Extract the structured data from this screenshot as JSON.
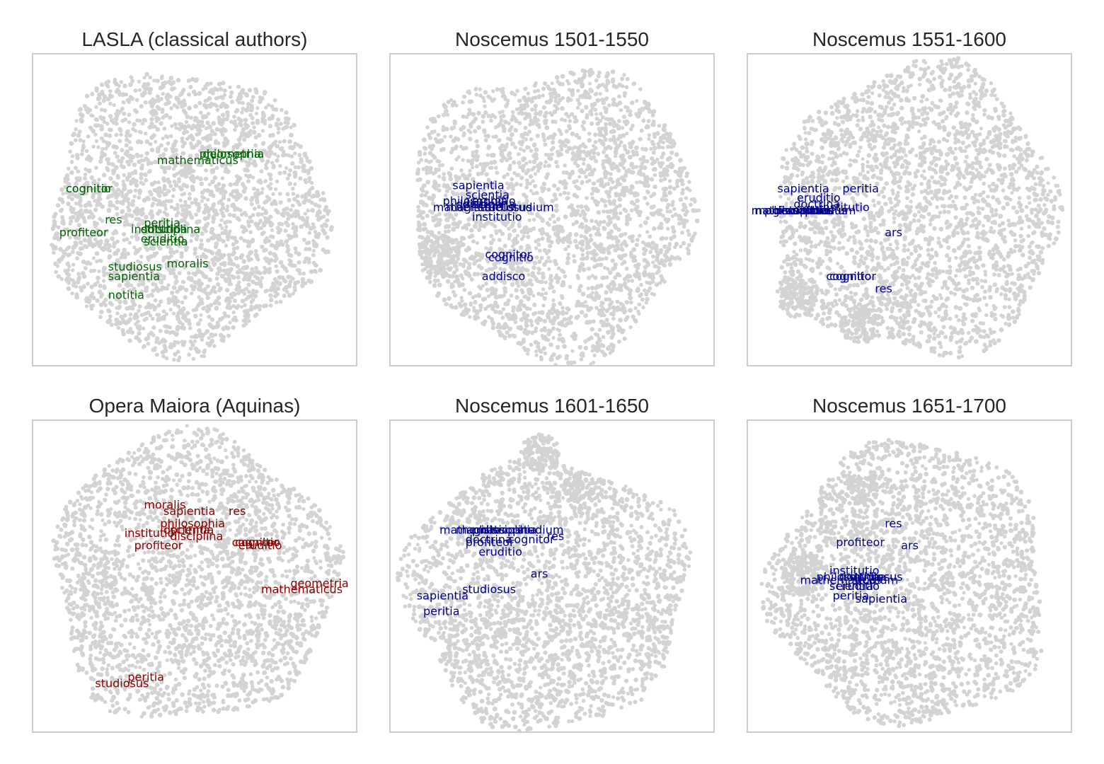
{
  "chart_data": [
    {
      "type": "scatter",
      "title": "LASLA (classical authors)",
      "label_color": "#006400",
      "point_color": "#d3d3d3",
      "xlim": [
        0,
        100
      ],
      "ylim": [
        0,
        100
      ],
      "grid": false,
      "annotations": [
        {
          "text": "philosophia",
          "x": 51,
          "y": 67
        },
        {
          "text": "geometria",
          "x": 52,
          "y": 67
        },
        {
          "text": "mathematicus",
          "x": 38,
          "y": 65
        },
        {
          "text": "cognitio",
          "x": 10,
          "y": 56
        },
        {
          "text": "cognitor",
          "x": 10,
          "y": 56
        },
        {
          "text": "res",
          "x": 22,
          "y": 46
        },
        {
          "text": "peritia",
          "x": 34,
          "y": 45
        },
        {
          "text": "profiteor",
          "x": 8,
          "y": 42
        },
        {
          "text": "institutio",
          "x": 30,
          "y": 43
        },
        {
          "text": "doctrina",
          "x": 33,
          "y": 43
        },
        {
          "text": "disciplina",
          "x": 35,
          "y": 43
        },
        {
          "text": "eruditio",
          "x": 33,
          "y": 40
        },
        {
          "text": "scientia",
          "x": 34,
          "y": 39
        },
        {
          "text": "studiosus",
          "x": 23,
          "y": 31
        },
        {
          "text": "moralis",
          "x": 41,
          "y": 32
        },
        {
          "text": "sapientia",
          "x": 23,
          "y": 28
        },
        {
          "text": "notitia",
          "x": 23,
          "y": 22
        }
      ]
    },
    {
      "type": "scatter",
      "title": "Noscemus 1501-1550",
      "label_color": "#00008b",
      "point_color": "#d3d3d3",
      "xlim": [
        0,
        100
      ],
      "ylim": [
        0,
        100
      ],
      "grid": false,
      "annotations": [
        {
          "text": "sapientia",
          "x": 19,
          "y": 57
        },
        {
          "text": "scientia",
          "x": 23,
          "y": 54
        },
        {
          "text": "philosophia",
          "x": 16,
          "y": 52
        },
        {
          "text": "doctrina",
          "x": 20,
          "y": 51
        },
        {
          "text": "disciplina",
          "x": 22,
          "y": 51
        },
        {
          "text": "eruditio",
          "x": 25,
          "y": 52
        },
        {
          "text": "mathematicus",
          "x": 13,
          "y": 50
        },
        {
          "text": "magister",
          "x": 17,
          "y": 50
        },
        {
          "text": "studium",
          "x": 36,
          "y": 50
        },
        {
          "text": "studiosus",
          "x": 27,
          "y": 50
        },
        {
          "text": "institutio",
          "x": 25,
          "y": 47
        },
        {
          "text": "cognitor",
          "x": 29,
          "y": 35
        },
        {
          "text": "cognitio",
          "x": 30,
          "y": 34
        },
        {
          "text": "addisco",
          "x": 28,
          "y": 28
        }
      ]
    },
    {
      "type": "scatter",
      "title": "Noscemus 1551-1600",
      "label_color": "#00008b",
      "point_color": "#d3d3d3",
      "xlim": [
        0,
        100
      ],
      "ylim": [
        0,
        100
      ],
      "grid": false,
      "annotations": [
        {
          "text": "sapientia",
          "x": 9,
          "y": 56
        },
        {
          "text": "peritia",
          "x": 29,
          "y": 56
        },
        {
          "text": "eruditio",
          "x": 15,
          "y": 53
        },
        {
          "text": "doctrina",
          "x": 14,
          "y": 51
        },
        {
          "text": "mathematicus",
          "x": 1,
          "y": 49
        },
        {
          "text": "magister",
          "x": 2,
          "y": 49
        },
        {
          "text": "philosophia",
          "x": 5,
          "y": 49
        },
        {
          "text": "disciplina",
          "x": 8,
          "y": 49
        },
        {
          "text": "scientia",
          "x": 12,
          "y": 49
        },
        {
          "text": "studiosus",
          "x": 14,
          "y": 49
        },
        {
          "text": "studium",
          "x": 19,
          "y": 49
        },
        {
          "text": "institutio",
          "x": 22,
          "y": 50
        },
        {
          "text": "ars",
          "x": 42,
          "y": 42
        },
        {
          "text": "cognitio",
          "x": 24,
          "y": 28
        },
        {
          "text": "cognitor",
          "x": 25,
          "y": 28
        },
        {
          "text": "res",
          "x": 39,
          "y": 24
        }
      ]
    },
    {
      "type": "scatter",
      "title": "Opera Maiora (Aquinas)",
      "label_color": "#8b0000",
      "point_color": "#d3d3d3",
      "xlim": [
        0,
        100
      ],
      "ylim": [
        0,
        100
      ],
      "grid": false,
      "annotations": [
        {
          "text": "moralis",
          "x": 34,
          "y": 72
        },
        {
          "text": "sapientia",
          "x": 40,
          "y": 70
        },
        {
          "text": "res",
          "x": 60,
          "y": 70
        },
        {
          "text": "philosophia",
          "x": 39,
          "y": 66
        },
        {
          "text": "institutio",
          "x": 28,
          "y": 63
        },
        {
          "text": "doctrina",
          "x": 40,
          "y": 64
        },
        {
          "text": "scientia",
          "x": 42,
          "y": 64
        },
        {
          "text": "disciplina",
          "x": 42,
          "y": 62
        },
        {
          "text": "profiteor",
          "x": 31,
          "y": 59
        },
        {
          "text": "cognitor",
          "x": 61,
          "y": 60
        },
        {
          "text": "cognitio",
          "x": 62,
          "y": 60
        },
        {
          "text": "eruditio",
          "x": 63,
          "y": 59
        },
        {
          "text": "geometria",
          "x": 79,
          "y": 47
        },
        {
          "text": "mathematicus",
          "x": 70,
          "y": 45
        },
        {
          "text": "peritia",
          "x": 29,
          "y": 17
        },
        {
          "text": "studiosus",
          "x": 19,
          "y": 15
        }
      ]
    },
    {
      "type": "scatter",
      "title": "Noscemus 1601-1650",
      "label_color": "#00008b",
      "point_color": "#d3d3d3",
      "xlim": [
        0,
        100
      ],
      "ylim": [
        0,
        100
      ],
      "grid": false,
      "annotations": [
        {
          "text": "mathematicus",
          "x": 15,
          "y": 64
        },
        {
          "text": "magister",
          "x": 20,
          "y": 64
        },
        {
          "text": "philosophia",
          "x": 25,
          "y": 64
        },
        {
          "text": "disciplina",
          "x": 28,
          "y": 64
        },
        {
          "text": "studium",
          "x": 39,
          "y": 64
        },
        {
          "text": "res",
          "x": 48,
          "y": 62
        },
        {
          "text": "doctrina",
          "x": 23,
          "y": 61
        },
        {
          "text": "profiteor",
          "x": 23,
          "y": 60
        },
        {
          "text": "cognitor",
          "x": 36,
          "y": 61
        },
        {
          "text": "eruditio",
          "x": 27,
          "y": 57
        },
        {
          "text": "ars",
          "x": 43,
          "y": 50
        },
        {
          "text": "studiosus",
          "x": 22,
          "y": 45
        },
        {
          "text": "sapientia",
          "x": 8,
          "y": 43
        },
        {
          "text": "peritia",
          "x": 10,
          "y": 38
        }
      ]
    },
    {
      "type": "scatter",
      "title": "Noscemus 1651-1700",
      "label_color": "#00008b",
      "point_color": "#d3d3d3",
      "xlim": [
        0,
        100
      ],
      "ylim": [
        0,
        100
      ],
      "grid": false,
      "annotations": [
        {
          "text": "res",
          "x": 42,
          "y": 66
        },
        {
          "text": "profiteor",
          "x": 27,
          "y": 60
        },
        {
          "text": "ars",
          "x": 47,
          "y": 59
        },
        {
          "text": "institutio",
          "x": 25,
          "y": 51
        },
        {
          "text": "philosophia",
          "x": 21,
          "y": 49
        },
        {
          "text": "mathematicus",
          "x": 16,
          "y": 48
        },
        {
          "text": "doctrina",
          "x": 28,
          "y": 49
        },
        {
          "text": "studiosus",
          "x": 31,
          "y": 49
        },
        {
          "text": "studium",
          "x": 32,
          "y": 48
        },
        {
          "text": "scientia",
          "x": 25,
          "y": 46
        },
        {
          "text": "eruditio",
          "x": 27,
          "y": 46
        },
        {
          "text": "peritia",
          "x": 26,
          "y": 43
        },
        {
          "text": "sapientia",
          "x": 33,
          "y": 42
        }
      ]
    }
  ]
}
